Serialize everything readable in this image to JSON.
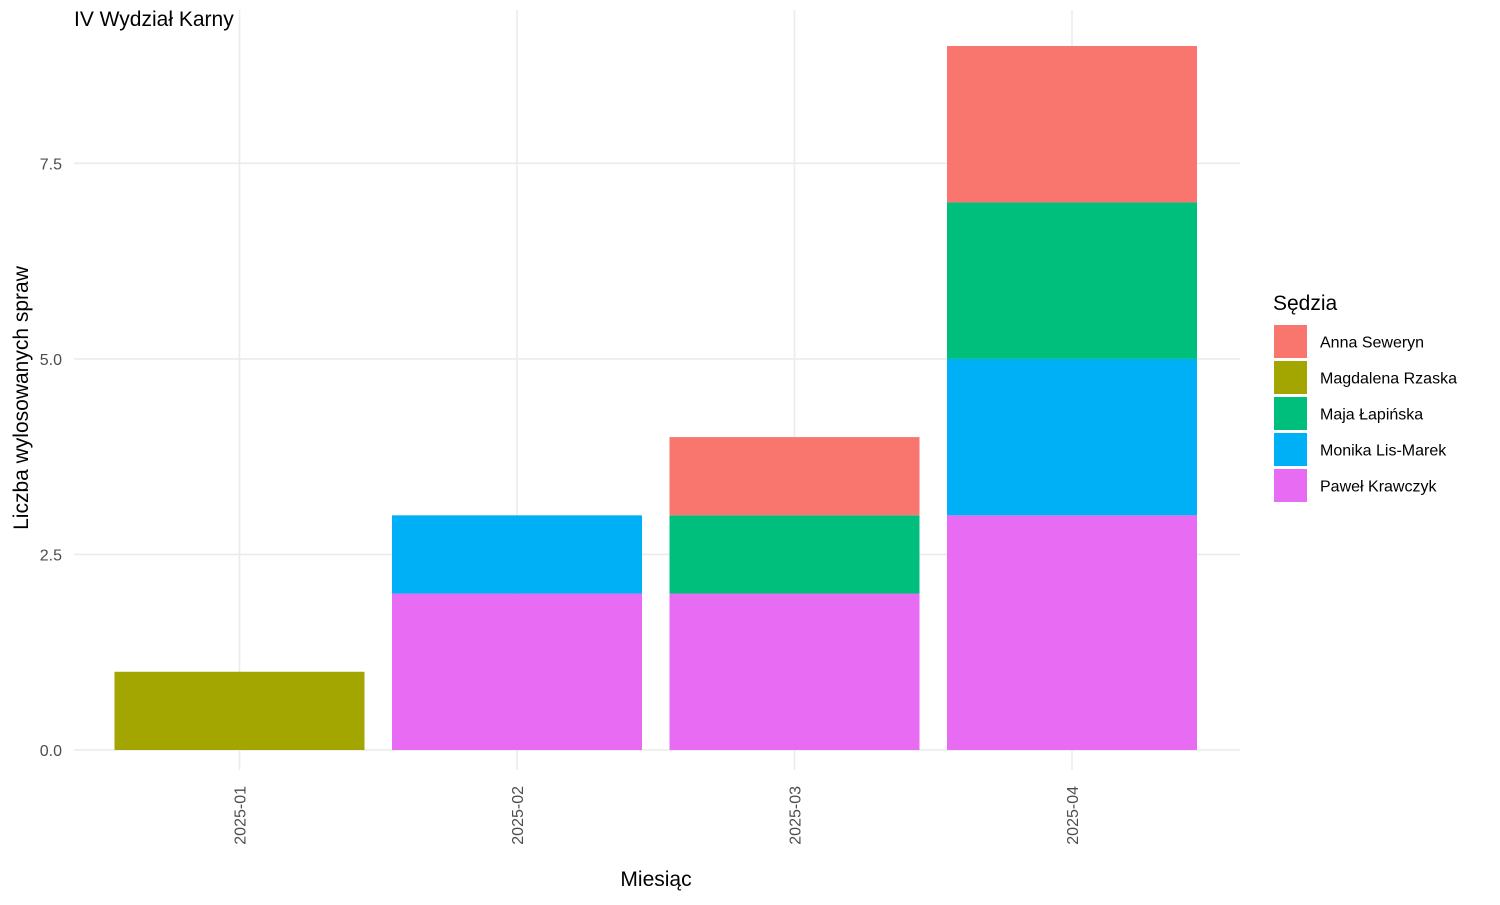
{
  "chart_data": {
    "type": "bar",
    "stacked": true,
    "title": "IV Wydział Karny",
    "xlabel": "Miesiąc",
    "ylabel": "Liczba wylosowanych spraw",
    "categories": [
      "2025-01",
      "2025-02",
      "2025-03",
      "2025-04"
    ],
    "ylim": [
      0,
      9
    ],
    "yticks": [
      0,
      2.5,
      5,
      7.5
    ],
    "ytick_labels": [
      "0.0",
      "2.5",
      "5.0",
      "7.5"
    ],
    "grid": true,
    "legend": {
      "title": "Sędzia",
      "position": "right"
    },
    "series": [
      {
        "name": "Anna Seweryn",
        "color": "#F8766D",
        "values": [
          0,
          0,
          1,
          2
        ]
      },
      {
        "name": "Magdalena Rzaska",
        "color": "#A3A500",
        "values": [
          1,
          0,
          0,
          0
        ]
      },
      {
        "name": "Maja Łapińska",
        "color": "#00BF7D",
        "values": [
          0,
          0,
          1,
          2
        ]
      },
      {
        "name": "Monika Lis-Marek",
        "color": "#00B0F6",
        "values": [
          0,
          1,
          0,
          2
        ]
      },
      {
        "name": "Paweł Krawczyk",
        "color": "#E76BF3",
        "values": [
          0,
          2,
          2,
          3
        ]
      }
    ]
  }
}
